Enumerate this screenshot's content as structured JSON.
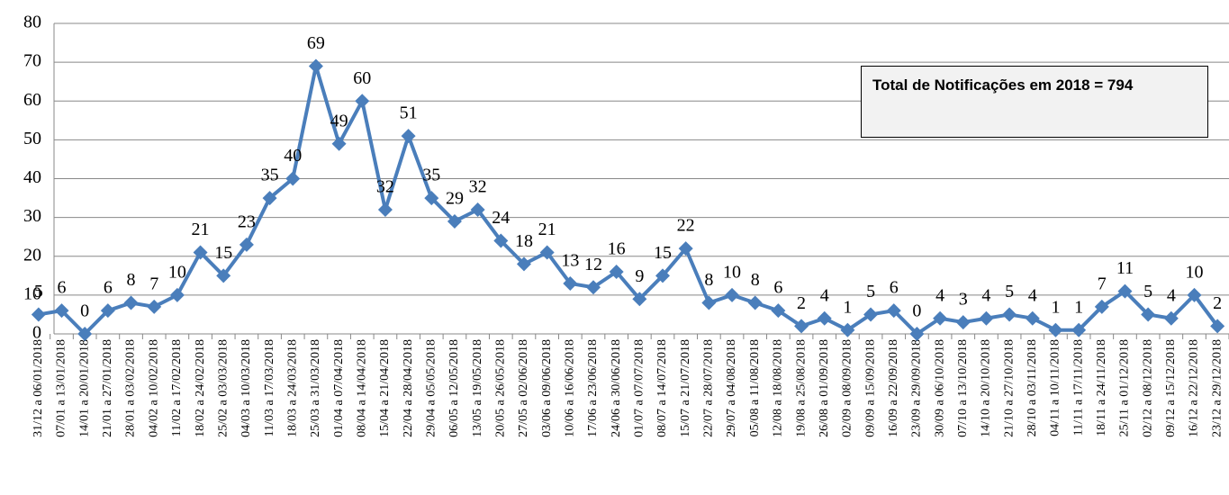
{
  "chart_data": {
    "type": "line",
    "categories": [
      "31/12 a 06/01/2018",
      "07/01 a 13/01/2018",
      "14/01 a 20/01/2018",
      "21/01 a 27/01/2018",
      "28/01 a 03/02/2018",
      "04/02 a 10/02/2018",
      "11/02 a 17/02/2018",
      "18/02 a 24/02/2018",
      "25/02 a 03/03/2018",
      "04/03 a 10/03/2018",
      "11/03 a 17/03/2018",
      "18/03 a 24/03/2018",
      "25/03 a 31/03/2018",
      "01/04 a 07/04/2018",
      "08/04 a 14/04/2018",
      "15/04 a 21/04/2018",
      "22/04 a 28/04/2018",
      "29/04 a 05/05/2018",
      "06/05 a 12/05/2018",
      "13/05 a 19/05/2018",
      "20/05 a 26/05/2018",
      "27/05 a 02/06/2018",
      "03/06 a 09/06/2018",
      "10/06 a 16/06/2018",
      "17/06 a 23/06/2018",
      "24/06 a 30/06/2018",
      "01/07 a 07/07/2018",
      "08/07 a 14/07/2018",
      "15/07 a 21/07/2018",
      "22/07 a 28/07/2018",
      "29/07 a 04/08/2018",
      "05/08 a 11/08/2018",
      "12/08 a 18/08/2018",
      "19/08 a 25/08/2018",
      "26/08 a 01/09/2018",
      "02/09 a 08/09/2018",
      "09/09 a 15/09/2018",
      "16/09 a 22/09/2018",
      "23/09 a 29/09/2018",
      "30/09 a 06/10/2018",
      "07/10 a 13/10/2018",
      "14/10 a 20/10/2018",
      "21/10 a 27/10/2018",
      "28/10 a 03/11/2018",
      "04/11 a 10/11/2018",
      "11/11 a 17/11/2018",
      "18/11 a 24/11/2018",
      "25/11 a 01/12/2018",
      "02/12 a 08/12/2018",
      "09/12 a 15/12/2018",
      "16/12 a 22/12/2018",
      "23/12 a 29/12/2018"
    ],
    "values": [
      5,
      6,
      0,
      6,
      8,
      7,
      10,
      21,
      15,
      23,
      35,
      40,
      69,
      49,
      60,
      32,
      51,
      35,
      29,
      32,
      24,
      18,
      21,
      13,
      12,
      16,
      9,
      15,
      22,
      8,
      10,
      8,
      6,
      2,
      4,
      1,
      5,
      6,
      0,
      4,
      3,
      4,
      5,
      4,
      1,
      1,
      7,
      11,
      5,
      4,
      10,
      2
    ],
    "color": "#4a7ebb",
    "ylim": [
      0,
      80
    ],
    "yticks": [
      0,
      10,
      20,
      30,
      40,
      50,
      60,
      70,
      80
    ],
    "grid": true,
    "annotation": "Total de Notificações em 2018 = 794"
  }
}
